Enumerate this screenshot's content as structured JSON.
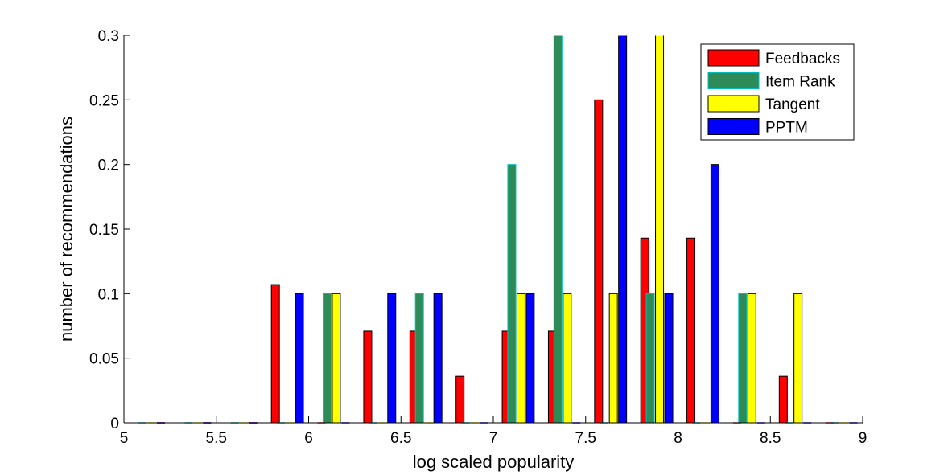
{
  "chart_data": {
    "type": "bar",
    "title": "",
    "xlabel": "log scaled popularity",
    "ylabel": "number of recommendations",
    "xlim": [
      5,
      9
    ],
    "ylim": [
      0,
      0.3
    ],
    "x_ticks": [
      5,
      5.5,
      6,
      6.5,
      7,
      7.5,
      8,
      8.5,
      9
    ],
    "x_tick_labels": [
      "5",
      "5.5",
      "6",
      "6.5",
      "7",
      "7.5",
      "8",
      "8.5",
      "9"
    ],
    "y_ticks": [
      0,
      0.05,
      0.1,
      0.15,
      0.2,
      0.25,
      0.3
    ],
    "y_tick_labels": [
      "0",
      "0.05",
      "0.1",
      "0.15",
      "0.2",
      "0.25",
      "0.3"
    ],
    "grid": false,
    "legend_position": "top-right",
    "series": [
      {
        "name": "Feedbacks",
        "color": "#ff0000",
        "x": [
          5.2,
          5.45,
          5.7,
          5.82,
          6.07,
          6.32,
          6.57,
          6.82,
          7.07,
          7.32,
          7.57,
          7.82,
          8.07,
          8.32,
          8.57,
          8.82
        ],
        "values": [
          0,
          0,
          0,
          0.107,
          0,
          0.071,
          0.071,
          0.036,
          0.071,
          0.071,
          0.25,
          0.143,
          0.143,
          0,
          0.036,
          0
        ]
      },
      {
        "name": "Item Rank",
        "color": "#2e8b57",
        "x": [
          5.1,
          5.35,
          5.6,
          5.85,
          6.1,
          6.35,
          6.6,
          6.85,
          7.1,
          7.35,
          7.6,
          7.85,
          8.1,
          8.35,
          8.6,
          8.85
        ],
        "values": [
          0,
          0,
          0,
          0,
          0.1,
          0,
          0.1,
          0,
          0.2,
          0.3,
          0,
          0.1,
          0,
          0.1,
          0,
          0
        ]
      },
      {
        "name": "Tangent",
        "color": "#ffff00",
        "x": [
          5.15,
          5.4,
          5.65,
          5.9,
          6.15,
          6.4,
          6.65,
          6.9,
          7.15,
          7.4,
          7.65,
          7.9,
          8.15,
          8.4,
          8.65,
          8.9
        ],
        "values": [
          0,
          0,
          0,
          0,
          0.1,
          0,
          0,
          0,
          0.1,
          0.1,
          0.1,
          0.3,
          0,
          0.1,
          0.1,
          0
        ]
      },
      {
        "name": "PPTM",
        "color": "#0000ff",
        "x": [
          5.2,
          5.45,
          5.7,
          5.95,
          6.2,
          6.45,
          6.7,
          6.95,
          7.2,
          7.45,
          7.7,
          7.95,
          8.2,
          8.45,
          8.7,
          8.95
        ],
        "values": [
          0,
          0,
          0,
          0.1,
          0,
          0.1,
          0.1,
          0,
          0.1,
          0,
          0.3,
          0.1,
          0.2,
          0,
          0,
          0
        ]
      }
    ]
  }
}
